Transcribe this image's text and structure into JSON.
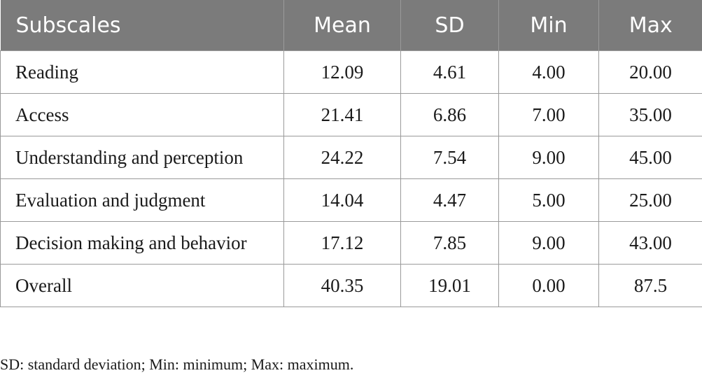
{
  "table": {
    "headers": [
      "Subscales",
      "Mean",
      "SD",
      "Min",
      "Max"
    ],
    "rows": [
      [
        "Reading",
        "12.09",
        "4.61",
        "4.00",
        "20.00"
      ],
      [
        "Access",
        "21.41",
        "6.86",
        "7.00",
        "35.00"
      ],
      [
        "Understanding and perception",
        "24.22",
        "7.54",
        "9.00",
        "45.00"
      ],
      [
        "Evaluation and judgment",
        "14.04",
        "4.47",
        "5.00",
        "25.00"
      ],
      [
        "Decision making and behavior",
        "17.12",
        "7.85",
        "9.00",
        "43.00"
      ],
      [
        "Overall",
        "40.35",
        "19.01",
        "0.00",
        "87.5"
      ]
    ],
    "header_bg_color": "#7b7b7b",
    "header_text_color": "#ffffff",
    "border_color": "#9a9a9a"
  },
  "footnote": "SD: standard deviation; Min: minimum; Max: maximum."
}
